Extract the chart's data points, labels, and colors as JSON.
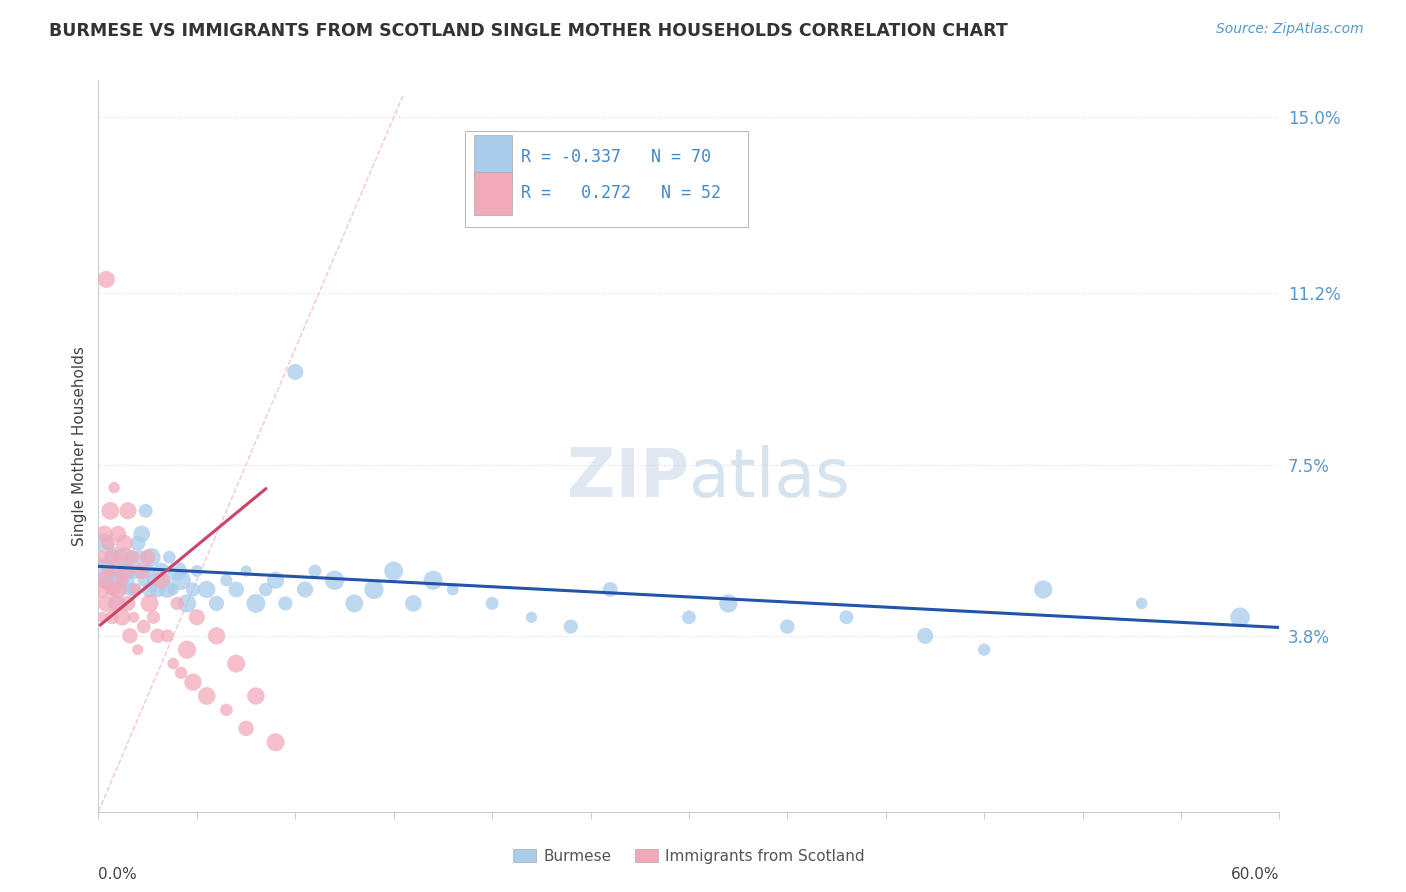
{
  "title": "BURMESE VS IMMIGRANTS FROM SCOTLAND SINGLE MOTHER HOUSEHOLDS CORRELATION CHART",
  "source": "Source: ZipAtlas.com",
  "ylabel": "Single Mother Households",
  "yticks": [
    0.0,
    0.038,
    0.075,
    0.112,
    0.15
  ],
  "ytick_labels": [
    "",
    "3.8%",
    "7.5%",
    "11.2%",
    "15.0%"
  ],
  "xlim": [
    0.0,
    0.6
  ],
  "ylim": [
    0.0,
    0.158
  ],
  "legend_R_blue": "-0.337",
  "legend_N_blue": "70",
  "legend_R_pink": "0.272",
  "legend_N_pink": "52",
  "watermark_ZIP": "ZIP",
  "watermark_atlas": "atlas",
  "blue_color": "#A8CCEA",
  "pink_color": "#F2AABB",
  "trend_blue_color": "#2255AA",
  "trend_pink_color": "#CC4466",
  "diagonal_color": "#F0B8C8",
  "blue_scatter": [
    [
      0.002,
      0.052
    ],
    [
      0.003,
      0.058
    ],
    [
      0.004,
      0.05
    ],
    [
      0.005,
      0.053
    ],
    [
      0.006,
      0.055
    ],
    [
      0.007,
      0.048
    ],
    [
      0.008,
      0.056
    ],
    [
      0.009,
      0.05
    ],
    [
      0.01,
      0.045
    ],
    [
      0.011,
      0.05
    ],
    [
      0.012,
      0.048
    ],
    [
      0.013,
      0.055
    ],
    [
      0.014,
      0.052
    ],
    [
      0.015,
      0.05
    ],
    [
      0.016,
      0.048
    ],
    [
      0.017,
      0.055
    ],
    [
      0.018,
      0.048
    ],
    [
      0.019,
      0.052
    ],
    [
      0.02,
      0.058
    ],
    [
      0.021,
      0.055
    ],
    [
      0.022,
      0.06
    ],
    [
      0.023,
      0.05
    ],
    [
      0.024,
      0.065
    ],
    [
      0.025,
      0.052
    ],
    [
      0.026,
      0.048
    ],
    [
      0.027,
      0.055
    ],
    [
      0.028,
      0.05
    ],
    [
      0.03,
      0.048
    ],
    [
      0.032,
      0.052
    ],
    [
      0.034,
      0.05
    ],
    [
      0.035,
      0.048
    ],
    [
      0.036,
      0.055
    ],
    [
      0.038,
      0.048
    ],
    [
      0.04,
      0.052
    ],
    [
      0.042,
      0.05
    ],
    [
      0.045,
      0.045
    ],
    [
      0.048,
      0.048
    ],
    [
      0.05,
      0.052
    ],
    [
      0.055,
      0.048
    ],
    [
      0.06,
      0.045
    ],
    [
      0.065,
      0.05
    ],
    [
      0.07,
      0.048
    ],
    [
      0.075,
      0.052
    ],
    [
      0.08,
      0.045
    ],
    [
      0.085,
      0.048
    ],
    [
      0.09,
      0.05
    ],
    [
      0.095,
      0.045
    ],
    [
      0.1,
      0.095
    ],
    [
      0.105,
      0.048
    ],
    [
      0.11,
      0.052
    ],
    [
      0.12,
      0.05
    ],
    [
      0.13,
      0.045
    ],
    [
      0.14,
      0.048
    ],
    [
      0.15,
      0.052
    ],
    [
      0.16,
      0.045
    ],
    [
      0.17,
      0.05
    ],
    [
      0.18,
      0.048
    ],
    [
      0.2,
      0.045
    ],
    [
      0.22,
      0.042
    ],
    [
      0.24,
      0.04
    ],
    [
      0.26,
      0.048
    ],
    [
      0.3,
      0.042
    ],
    [
      0.32,
      0.045
    ],
    [
      0.35,
      0.04
    ],
    [
      0.38,
      0.042
    ],
    [
      0.42,
      0.038
    ],
    [
      0.45,
      0.035
    ],
    [
      0.48,
      0.048
    ],
    [
      0.53,
      0.045
    ],
    [
      0.58,
      0.042
    ]
  ],
  "pink_scatter": [
    [
      0.001,
      0.048
    ],
    [
      0.002,
      0.055
    ],
    [
      0.002,
      0.042
    ],
    [
      0.003,
      0.05
    ],
    [
      0.003,
      0.06
    ],
    [
      0.004,
      0.045
    ],
    [
      0.004,
      0.115
    ],
    [
      0.005,
      0.052
    ],
    [
      0.005,
      0.058
    ],
    [
      0.006,
      0.048
    ],
    [
      0.006,
      0.065
    ],
    [
      0.007,
      0.055
    ],
    [
      0.007,
      0.042
    ],
    [
      0.008,
      0.07
    ],
    [
      0.008,
      0.048
    ],
    [
      0.009,
      0.052
    ],
    [
      0.009,
      0.045
    ],
    [
      0.01,
      0.06
    ],
    [
      0.01,
      0.048
    ],
    [
      0.011,
      0.055
    ],
    [
      0.012,
      0.05
    ],
    [
      0.012,
      0.042
    ],
    [
      0.013,
      0.058
    ],
    [
      0.014,
      0.052
    ],
    [
      0.015,
      0.065
    ],
    [
      0.015,
      0.045
    ],
    [
      0.016,
      0.038
    ],
    [
      0.017,
      0.055
    ],
    [
      0.018,
      0.042
    ],
    [
      0.019,
      0.048
    ],
    [
      0.02,
      0.035
    ],
    [
      0.022,
      0.052
    ],
    [
      0.023,
      0.04
    ],
    [
      0.025,
      0.055
    ],
    [
      0.026,
      0.045
    ],
    [
      0.028,
      0.042
    ],
    [
      0.03,
      0.038
    ],
    [
      0.032,
      0.05
    ],
    [
      0.035,
      0.038
    ],
    [
      0.038,
      0.032
    ],
    [
      0.04,
      0.045
    ],
    [
      0.042,
      0.03
    ],
    [
      0.045,
      0.035
    ],
    [
      0.048,
      0.028
    ],
    [
      0.05,
      0.042
    ],
    [
      0.055,
      0.025
    ],
    [
      0.06,
      0.038
    ],
    [
      0.065,
      0.022
    ],
    [
      0.07,
      0.032
    ],
    [
      0.075,
      0.018
    ],
    [
      0.08,
      0.025
    ],
    [
      0.09,
      0.015
    ]
  ],
  "pink_trend_x": [
    0.001,
    0.085
  ],
  "blue_trend_x": [
    0.0,
    0.6
  ],
  "blue_trend_slope": -0.022,
  "blue_trend_intercept": 0.053,
  "pink_trend_slope": 0.35,
  "pink_trend_intercept": 0.04
}
